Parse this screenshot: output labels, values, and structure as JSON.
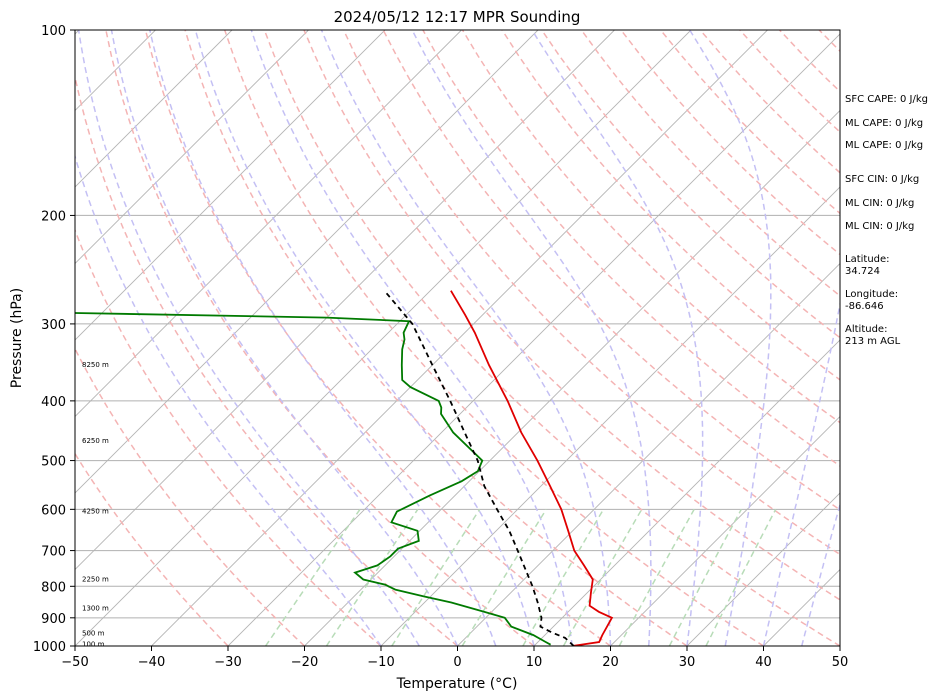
{
  "chart_data": {
    "type": "skew-t log-p sounding",
    "title": "2024/05/12 12:17 MPR Sounding",
    "xlabel": "Temperature (°C)",
    "ylabel": "Pressure (hPa)",
    "xlim": [
      -50,
      50
    ],
    "ylim": [
      1000,
      100
    ],
    "yscale": "log",
    "x_ticks": [
      -50,
      -40,
      -30,
      -20,
      -10,
      0,
      10,
      20,
      30,
      40,
      50
    ],
    "y_ticks": [
      1000,
      900,
      800,
      700,
      600,
      500,
      400,
      300,
      200,
      100
    ],
    "grid": "horizontal lines at pressure ticks",
    "series": [
      {
        "name": "",
        "color": "#e00000",
        "style": "solid",
        "points": [
          [
            1000,
            15.0
          ],
          [
            985,
            18.0
          ],
          [
            960,
            17.5
          ],
          [
            900,
            16.5
          ],
          [
            880,
            14.0
          ],
          [
            860,
            12.0
          ],
          [
            820,
            10.5
          ],
          [
            780,
            9.0
          ],
          [
            740,
            6.0
          ],
          [
            700,
            2.8
          ],
          [
            650,
            -0.6
          ],
          [
            600,
            -4.3
          ],
          [
            550,
            -8.8
          ],
          [
            500,
            -13.8
          ],
          [
            450,
            -19.6
          ],
          [
            400,
            -25.5
          ],
          [
            350,
            -32.6
          ],
          [
            310,
            -38.7
          ],
          [
            290,
            -42.3
          ],
          [
            265,
            -47.3
          ]
        ]
      },
      {
        "name": "",
        "color": "#007a00",
        "style": "solid",
        "points": [
          [
            995,
            12.0
          ],
          [
            985,
            11.0
          ],
          [
            960,
            8.5
          ],
          [
            930,
            4.5
          ],
          [
            900,
            2.5
          ],
          [
            880,
            -1.0
          ],
          [
            850,
            -6.5
          ],
          [
            830,
            -11.0
          ],
          [
            810,
            -15.5
          ],
          [
            795,
            -17.5
          ],
          [
            780,
            -21.0
          ],
          [
            760,
            -23.0
          ],
          [
            740,
            -21.0
          ],
          [
            715,
            -20.5
          ],
          [
            695,
            -20.5
          ],
          [
            675,
            -18.8
          ],
          [
            650,
            -20.3
          ],
          [
            630,
            -24.8
          ],
          [
            605,
            -25.5
          ],
          [
            570,
            -23.3
          ],
          [
            540,
            -21.0
          ],
          [
            520,
            -20.2
          ],
          [
            500,
            -21.0
          ],
          [
            450,
            -28.5
          ],
          [
            420,
            -32.5
          ],
          [
            410,
            -33.3
          ],
          [
            400,
            -34.5
          ],
          [
            380,
            -40.0
          ],
          [
            370,
            -42.0
          ],
          [
            350,
            -44.0
          ],
          [
            330,
            -46.0
          ],
          [
            318,
            -47.0
          ],
          [
            310,
            -48.0
          ],
          [
            297,
            -48.8
          ],
          [
            293,
            -60.0
          ],
          [
            287,
            -100.0
          ]
        ]
      },
      {
        "name": "",
        "color": "#000000",
        "style": "dashed",
        "points": [
          [
            1000,
            15.2
          ],
          [
            970,
            13.0
          ],
          [
            950,
            10.5
          ],
          [
            930,
            8.3
          ],
          [
            900,
            7.3
          ],
          [
            850,
            4.8
          ],
          [
            800,
            2.0
          ],
          [
            750,
            -1.2
          ],
          [
            700,
            -4.6
          ],
          [
            650,
            -8.3
          ],
          [
            600,
            -12.7
          ],
          [
            550,
            -17.4
          ],
          [
            500,
            -21.6
          ],
          [
            450,
            -27.0
          ],
          [
            400,
            -33.0
          ],
          [
            350,
            -40.0
          ],
          [
            300,
            -48.0
          ],
          [
            265,
            -56.0
          ]
        ]
      }
    ],
    "height_labels": [
      "100 m",
      "500 m",
      "1300 m",
      "2250 m",
      "4250 m",
      "6250 m",
      "8250 m"
    ]
  },
  "side_info": {
    "sfc_cape": "SFC CAPE: 0 J/kg",
    "ml_cape_1": "ML CAPE: 0 J/kg",
    "ml_cape_2": "ML CAPE: 0 J/kg",
    "sfc_cin": "SFC CIN: 0 J/kg",
    "ml_cin_1": "ML CIN: 0 J/kg",
    "ml_cin_2": "ML CIN: 0 J/kg",
    "latitude_label": "Latitude:",
    "latitude_value": "34.724",
    "longitude_label": "Longitude:",
    "longitude_value": "-86.646",
    "altitude_label": "Altitude:",
    "altitude_value": "213 m AGL"
  },
  "colors": {
    "temperature": "#e00000",
    "dewpoint": "#007a00",
    "parcel": "#000000",
    "dry_adiabat": "#f4b4b4",
    "moist_adiabat": "#c4c0f4",
    "mixing_ratio": "#b8dcb8",
    "isotherm": "#b4b4b4"
  }
}
